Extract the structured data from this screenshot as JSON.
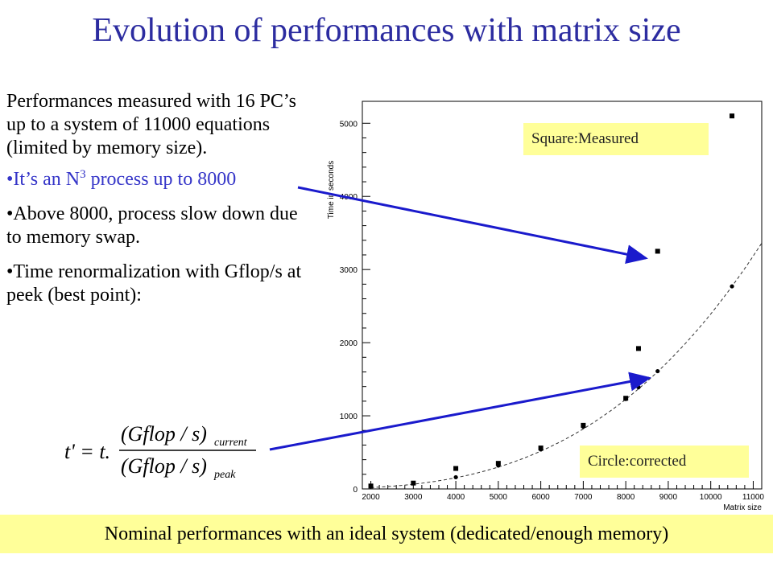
{
  "title": "Evolution of performances with matrix size",
  "intro": "Performances measured with 16 PC’s up to a system of 11000 equations (limited by memory size).",
  "bullet1_prefix": "•It’s an N",
  "bullet1_sup": "3",
  "bullet1_suffix": " process up to 8000",
  "bullet2": "•Above 8000, process slow down due to memory swap.",
  "bullet3": "•Time renormalization with Gflop/s at peek (best point):",
  "formula": {
    "lhs": "t' = t.",
    "numerator": "(Gflop / s)",
    "numerator_sub": "current",
    "denominator": "(Gflop / s)",
    "denominator_sub": "peak"
  },
  "callout_measured": "Square:Measured",
  "callout_corrected": "Circle:corrected",
  "footer": "Nominal performances with an ideal system (dedicated/enough memory)",
  "colors": {
    "title": "#2c2ca0",
    "arrow": "#1a1acc",
    "callout_bg": "#ffff99"
  },
  "chart_data": {
    "type": "scatter",
    "xlabel": "Matrix size",
    "ylabel": "Time in seconds",
    "xlim": [
      1800,
      11200
    ],
    "ylim": [
      0,
      5300
    ],
    "xticks": [
      2000,
      3000,
      4000,
      5000,
      6000,
      7000,
      8000,
      9000,
      10000,
      11000
    ],
    "yticks": [
      0,
      1000,
      2000,
      3000,
      4000,
      5000
    ],
    "series": [
      {
        "name": "Measured",
        "marker": "square",
        "points": [
          [
            2000,
            40
          ],
          [
            3000,
            80
          ],
          [
            4000,
            280
          ],
          [
            5000,
            350
          ],
          [
            6000,
            560
          ],
          [
            7000,
            870
          ],
          [
            8000,
            1240
          ],
          [
            8300,
            1920
          ],
          [
            8750,
            3250
          ],
          [
            10500,
            5100
          ]
        ]
      },
      {
        "name": "corrected",
        "marker": "circle",
        "points": [
          [
            2000,
            40
          ],
          [
            3000,
            80
          ],
          [
            4000,
            160
          ],
          [
            5000,
            320
          ],
          [
            6000,
            540
          ],
          [
            7000,
            850
          ],
          [
            8000,
            1230
          ],
          [
            8300,
            1390
          ],
          [
            8750,
            1610
          ],
          [
            10500,
            2770
          ]
        ]
      }
    ],
    "fit_curve": "dashed cubic fit"
  }
}
